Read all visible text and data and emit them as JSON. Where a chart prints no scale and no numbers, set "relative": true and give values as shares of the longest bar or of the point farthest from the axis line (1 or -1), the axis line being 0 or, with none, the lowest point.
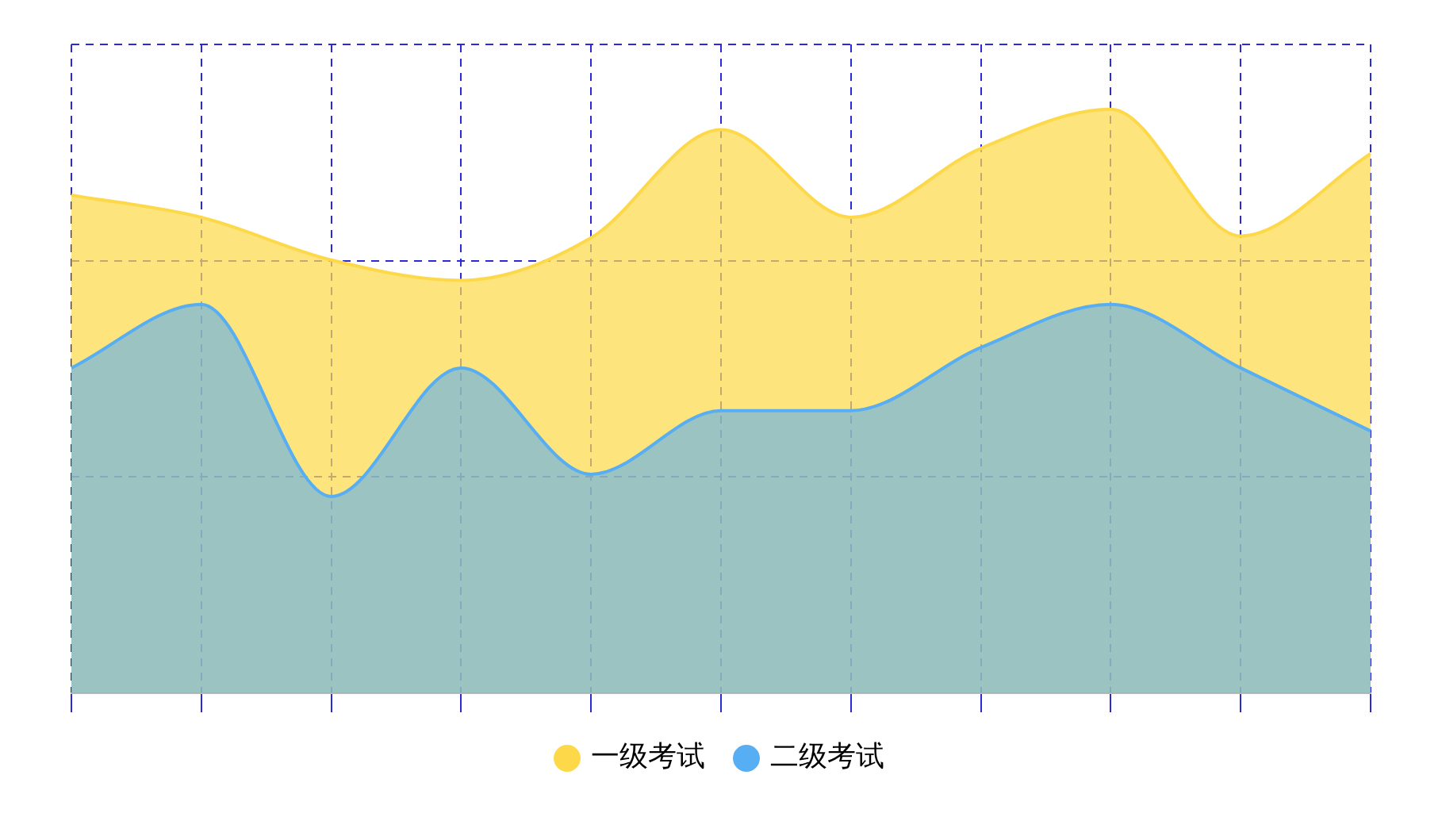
{
  "chart_data": {
    "type": "area",
    "relative": true,
    "categories": [
      null,
      null,
      null,
      null,
      null,
      null,
      null,
      null,
      null,
      null,
      null
    ],
    "series": [
      {
        "name": "一级考试",
        "color": "#fdd94a",
        "values": [
          0.853,
          0.815,
          0.742,
          0.707,
          0.78,
          0.965,
          0.815,
          0.933,
          1,
          0.783,
          0.924
        ]
      },
      {
        "name": "二级考试",
        "color": "#58aef2",
        "values": [
          0.557,
          0.666,
          0.337,
          0.557,
          0.375,
          0.484,
          0.484,
          0.592,
          0.666,
          0.557,
          0.449
        ]
      }
    ],
    "grid": true,
    "legend": "bottom",
    "marker": "none",
    "line_style": "solid"
  }
}
